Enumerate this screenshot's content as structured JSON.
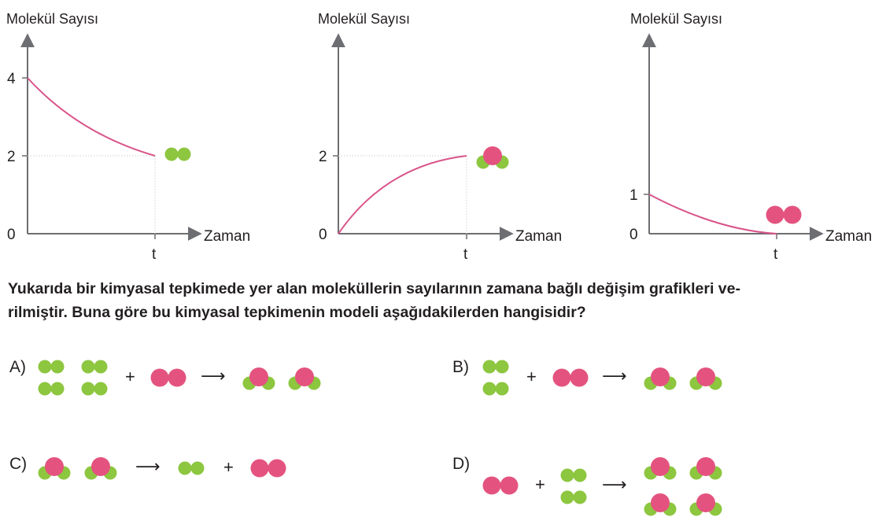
{
  "colors": {
    "green": "#8dc63f",
    "pink": "#e4537f",
    "axis": "#6d6e71",
    "curve": "#d9548a",
    "guide": "#cfd0d2"
  },
  "chart_data": [
    {
      "type": "line",
      "ylabel": "Molekül Sayısı",
      "xlabel": "Zaman",
      "xticks": [
        "t"
      ],
      "yticks": [
        0,
        2,
        4
      ],
      "ylim": [
        0,
        5
      ],
      "points": [
        [
          0,
          4
        ],
        [
          1,
          2
        ]
      ],
      "shape": "decreasing-convex",
      "molecule": "green-diatomic"
    },
    {
      "type": "line",
      "ylabel": "Molekül Sayısı",
      "xlabel": "Zaman",
      "xticks": [
        "t"
      ],
      "yticks": [
        0,
        2
      ],
      "ylim": [
        0,
        5
      ],
      "points": [
        [
          0,
          0
        ],
        [
          1,
          2
        ]
      ],
      "shape": "increasing-concave",
      "molecule": "pink-green-triatomic"
    },
    {
      "type": "line",
      "ylabel": "Molekül Sayısı",
      "xlabel": "Zaman",
      "xticks": [
        "t"
      ],
      "yticks": [
        0,
        1
      ],
      "ylim": [
        0,
        2.5
      ],
      "points": [
        [
          0,
          1
        ],
        [
          1,
          0
        ]
      ],
      "shape": "decreasing-convex",
      "molecule": "pink-diatomic"
    }
  ],
  "question": {
    "line1": "Yukarıda bir kimyasal tepkimede yer alan moleküllerin sayılarının zamana bağlı değişim grafikleri ve-",
    "line2": "rilmiştir. Buna göre bu kimyasal tepkimenin modeli aşağıdakilerden hangisidir?"
  },
  "options": {
    "A": {
      "label": "A)",
      "equation": "4 green-diatomic + 1 pink-diatomic → 2 pink-green-triatomic"
    },
    "B": {
      "label": "B)",
      "equation": "2 green-diatomic + 1 pink-diatomic → 2 pink-green-triatomic"
    },
    "C": {
      "label": "C)",
      "equation": "2 pink-green-triatomic → 1 green-diatomic + 1 pink-diatomic"
    },
    "D": {
      "label": "D)",
      "equation": "1 pink-diatomic + 2 green-diatomic → 4 pink-green-triatomic"
    }
  },
  "symbols": {
    "plus": "+",
    "arrow": "⟶"
  }
}
